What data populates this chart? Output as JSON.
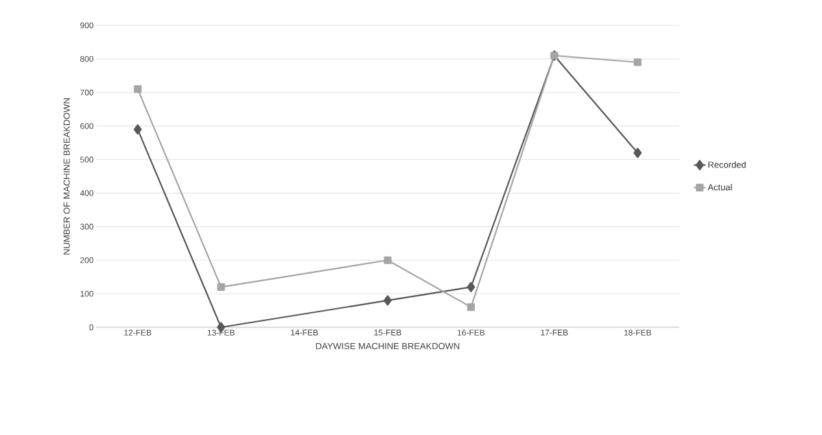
{
  "chart_data": {
    "type": "line",
    "xlabel": "DAYWISE MACHINE BREAKDOWN",
    "ylabel": "NUMBER OF MACHINE BREAKDOWN",
    "categories": [
      "12-FEB",
      "13-FEB",
      "14-FEB",
      "15-FEB",
      "16-FEB",
      "17-FEB",
      "18-FEB"
    ],
    "series": [
      {
        "name": "Recorded",
        "color": "#595959",
        "marker": "diamond",
        "values": [
          590,
          0,
          null,
          80,
          120,
          810,
          520
        ]
      },
      {
        "name": "Actual",
        "color": "#a5a5a5",
        "marker": "square",
        "values": [
          710,
          120,
          null,
          200,
          60,
          810,
          790
        ]
      }
    ],
    "ylim": [
      0,
      900
    ],
    "yticks": [
      0,
      100,
      200,
      300,
      400,
      500,
      600,
      700,
      800,
      900
    ],
    "grid": "y",
    "legend": "right"
  }
}
